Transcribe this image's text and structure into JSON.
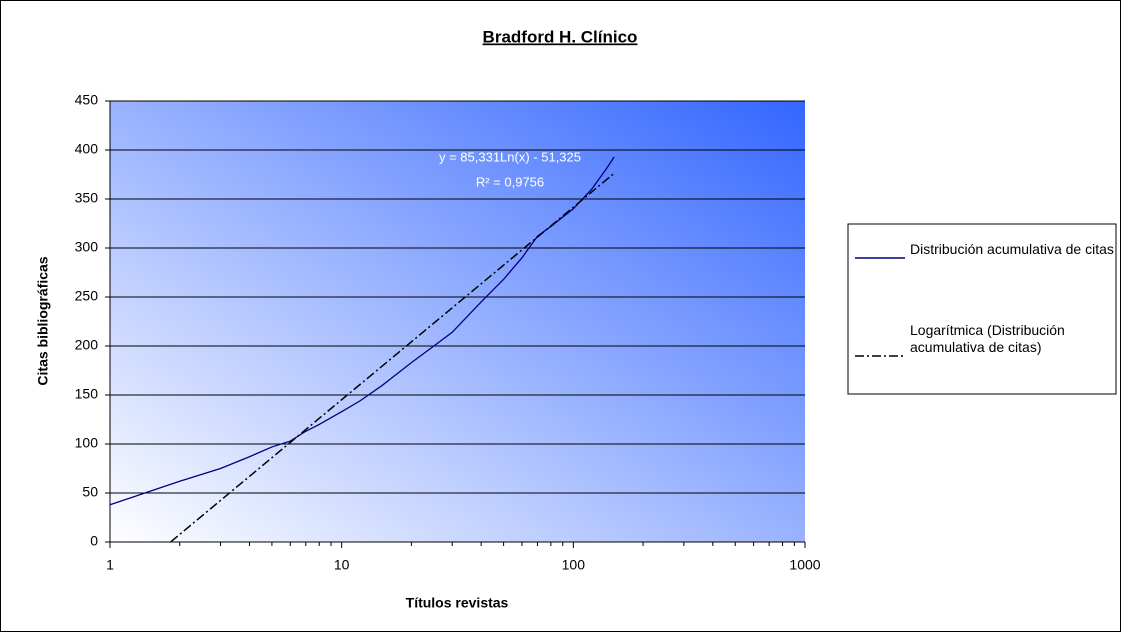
{
  "chart_data": {
    "type": "line",
    "title": "Bradford H. Clínico",
    "xlabel": "Títulos revistas",
    "ylabel": "Citas bibliográficas",
    "xscale": "log",
    "xlim": [
      1,
      1000
    ],
    "xticks": [
      1,
      10,
      100,
      1000
    ],
    "xminor_ticks": [
      2,
      3,
      4,
      5,
      6,
      7,
      8,
      9,
      20,
      30,
      40,
      50,
      60,
      70,
      80,
      90,
      200,
      300,
      400,
      500,
      600,
      700,
      800,
      900
    ],
    "ylim": [
      0,
      450
    ],
    "yticks": [
      0,
      50,
      100,
      150,
      200,
      250,
      300,
      350,
      400,
      450
    ],
    "grid": true,
    "legend": "right",
    "annotations": [
      "y = 85,331Ln(x) - 51,325",
      "R² = 0,9756"
    ],
    "series": [
      {
        "name": "Distribución acumulativa de citas",
        "color": "#000080",
        "style": "solid",
        "x": [
          1,
          1.5,
          2,
          3,
          4,
          5,
          6,
          7,
          8,
          10,
          12,
          15,
          20,
          25,
          30,
          40,
          50,
          60,
          70,
          80,
          100,
          120,
          140,
          150
        ],
        "values": [
          38,
          52,
          62,
          75,
          87,
          97,
          103,
          113,
          120,
          133,
          144,
          160,
          183,
          200,
          214,
          245,
          268,
          290,
          312,
          322,
          340,
          360,
          382,
          393
        ]
      },
      {
        "name": "Logarítmica (Distribución acumulativa de citas)",
        "color": "#000000",
        "style": "dashdot",
        "x": [
          1.83,
          2,
          3,
          5,
          10,
          20,
          50,
          100,
          150
        ],
        "values": [
          0.2,
          7.8,
          42.4,
          86.0,
          145.2,
          204.3,
          282.5,
          341.6,
          376.2
        ]
      }
    ]
  }
}
